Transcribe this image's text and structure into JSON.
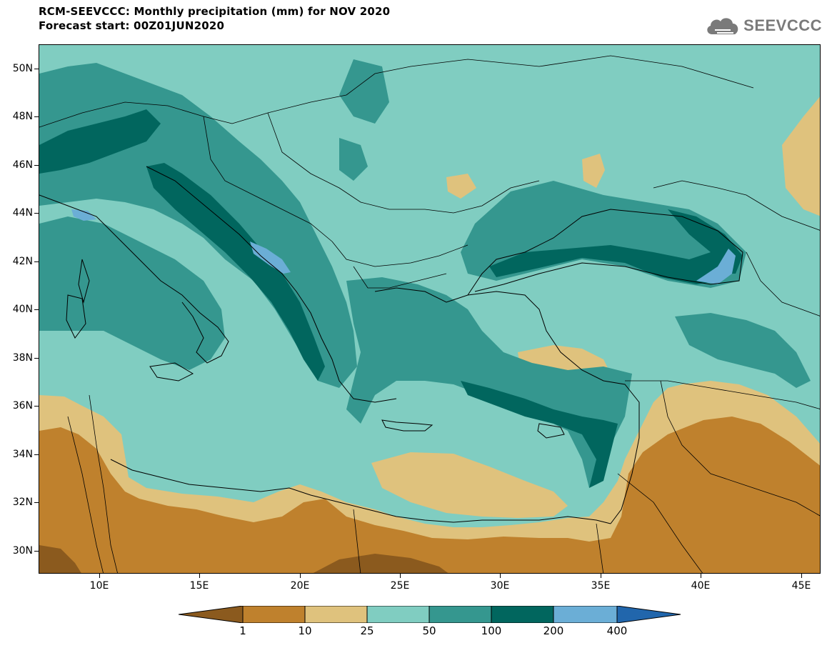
{
  "header": {
    "title_line1": "RCM-SEEVCCC: Monthly precipitation (mm) for NOV 2020",
    "title_line2": "Forecast start: 00Z01JUN2020"
  },
  "logo": {
    "text": "SEEVCCC",
    "icon": "cloud-icon",
    "color": "#7a7a7a"
  },
  "map": {
    "lat_labels": [
      "50N",
      "48N",
      "46N",
      "44N",
      "42N",
      "40N",
      "38N",
      "36N",
      "34N",
      "32N",
      "30N"
    ],
    "lon_labels": [
      "10E",
      "15E",
      "20E",
      "25E",
      "30E",
      "35E",
      "40E",
      "45E"
    ]
  },
  "legend": {
    "thresholds": [
      "1",
      "10",
      "25",
      "50",
      "100",
      "200",
      "400"
    ],
    "colors": [
      "#8b5a1e",
      "#bf812d",
      "#dfc27d",
      "#80cdc1",
      "#35978f",
      "#01665e",
      "#6baed6",
      "#2166ac"
    ]
  }
}
